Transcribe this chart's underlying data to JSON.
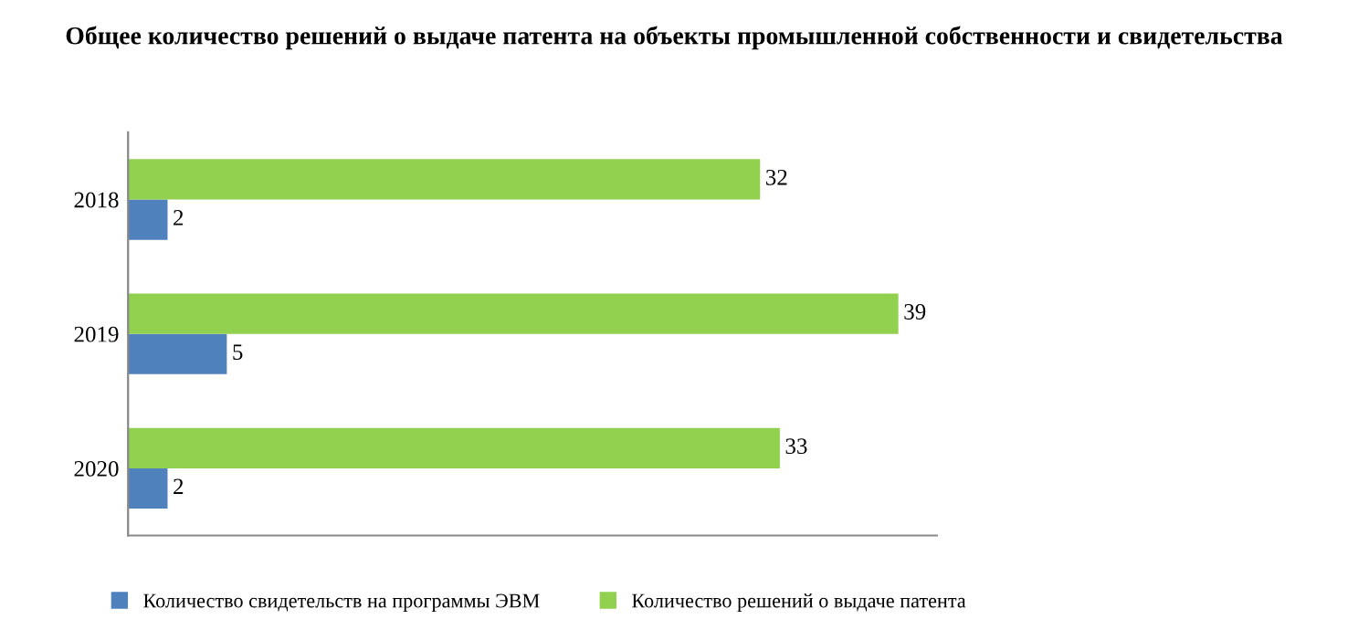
{
  "chart_data": {
    "type": "bar",
    "orientation": "horizontal",
    "title": "Общее количество решений о выдаче патента на объекты промышленной собственности и свидетельства",
    "categories": [
      "2018",
      "2019",
      "2020"
    ],
    "series": [
      {
        "name": "Количество свидетельств на программы ЭВМ",
        "color": "#4f81bd",
        "values": [
          2,
          5,
          2
        ]
      },
      {
        "name": "Количество решений о выдаче патента",
        "color": "#92d050",
        "values": [
          32,
          39,
          33
        ]
      }
    ],
    "data_labels": true,
    "legend": "bottom",
    "grid": false,
    "tick_labels": "y"
  }
}
